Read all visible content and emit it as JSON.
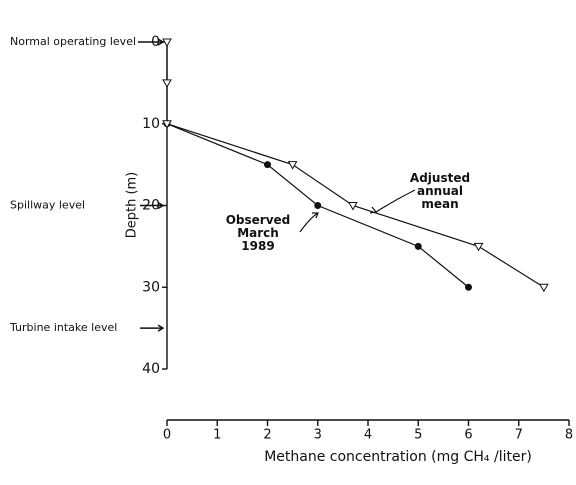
{
  "chart_data": {
    "type": "line",
    "xlabel": "Methane concentration (mg CH₄ /liter)",
    "ylabel": "Depth (m)",
    "xlim": [
      0,
      8
    ],
    "xticks": [
      0,
      1,
      2,
      3,
      4,
      5,
      6,
      7,
      8
    ],
    "ylim": [
      0,
      40
    ],
    "yticks": [
      0,
      10,
      20,
      30,
      40
    ],
    "y_inverted": true,
    "series": [
      {
        "name": "Observed March 1989",
        "color": "#111111",
        "marker": "circle",
        "x": [
          0,
          2,
          3,
          5,
          6
        ],
        "values": [
          10,
          15,
          20,
          25,
          30
        ]
      },
      {
        "name": "Adjusted annual mean",
        "color": "#111111",
        "marker": "triangle",
        "x": [
          0,
          0,
          0,
          2.5,
          3.7,
          6.2,
          7.5
        ],
        "values": [
          0,
          5,
          10,
          15,
          20,
          25,
          30
        ]
      }
    ],
    "levels": [
      {
        "label": "Normal operating level",
        "depth": 0
      },
      {
        "label": "Spillway level",
        "depth": 20
      },
      {
        "label": "Turbine intake level",
        "depth": 35
      }
    ]
  }
}
